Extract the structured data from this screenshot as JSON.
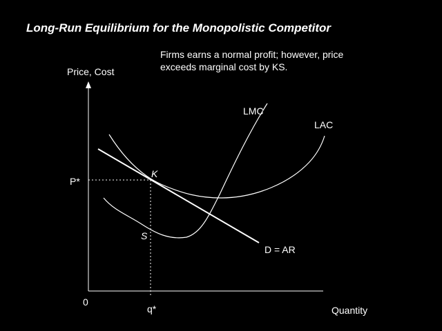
{
  "header": {
    "title": "Long-Run Equilibrium for the Monopolistic Competitor"
  },
  "note": {
    "lines": [
      "Firms earns a normal profit; however, price",
      "exceeds marginal cost by KS."
    ]
  },
  "axes": {
    "y_label": "Price, Cost",
    "x_label": "Quantity",
    "origin": "0"
  },
  "points": {
    "price": "P*",
    "quantity": "q*",
    "k": "K",
    "s": "S"
  },
  "curves": {
    "lmc": "LMC",
    "lac": "LAC",
    "demand": "D = AR"
  }
}
